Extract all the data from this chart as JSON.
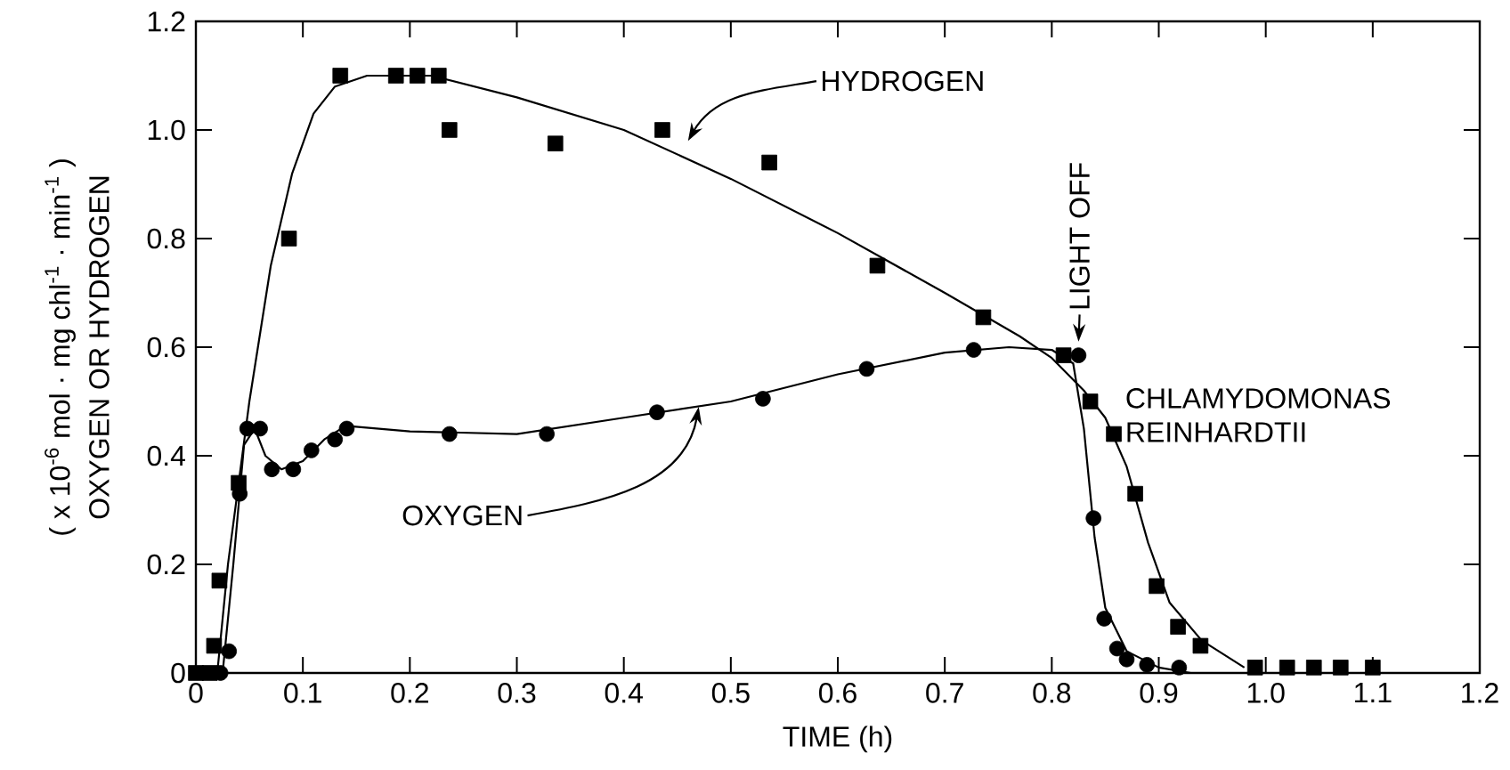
{
  "chart_data": {
    "type": "scatter",
    "xlabel": "TIME (h)",
    "ylabel": "OXYGEN OR HYDROGEN",
    "xlim": [
      0,
      1.2
    ],
    "ylim": [
      0,
      1.2
    ],
    "xticks": [
      0,
      0.1,
      0.2,
      0.3,
      0.4,
      0.5,
      0.6,
      0.7,
      0.8,
      0.9,
      {
        "value": 1.0,
        "label": "1.0"
      },
      1.1,
      1.2
    ],
    "yticks": [
      0,
      0.2,
      0.4,
      0.6,
      0.8,
      {
        "value": 1.0,
        "label": "1.0"
      },
      1.2
    ],
    "series": [
      {
        "marker": "square",
        "color": "#000000",
        "x": [
          0,
          0.013,
          0.017,
          0.022,
          0.04,
          0.087,
          0.135,
          0.187,
          0.207,
          0.227,
          0.237,
          0.336,
          0.436,
          0.536,
          0.637,
          0.736,
          0.811,
          0.836,
          0.858,
          0.878,
          0.898,
          0.918,
          0.939,
          0.99,
          1.02,
          1.045,
          1.07,
          1.1
        ],
        "values": [
          0,
          0,
          0.05,
          0.17,
          0.35,
          0.8,
          1.1,
          1.1,
          1.1,
          1.1,
          1.0,
          0.975,
          1.0,
          0.94,
          0.75,
          0.655,
          0.585,
          0.5,
          0.44,
          0.33,
          0.16,
          0.085,
          0.05,
          0.01,
          0.01,
          0.01,
          0.01,
          0.01
        ]
      },
      {
        "marker": "circle",
        "color": "#000000",
        "x": [
          0.023,
          0.031,
          0.041,
          0.048,
          0.06,
          0.071,
          0.091,
          0.108,
          0.13,
          0.141,
          0.237,
          0.328,
          0.431,
          0.53,
          0.627,
          0.727,
          0.825,
          0.839,
          0.849,
          0.861,
          0.87,
          0.889,
          0.919
        ],
        "values": [
          0,
          0.04,
          0.33,
          0.45,
          0.45,
          0.375,
          0.375,
          0.41,
          0.43,
          0.45,
          0.44,
          0.44,
          0.48,
          0.505,
          0.56,
          0.595,
          0.585,
          0.285,
          0.1,
          0.045,
          0.025,
          0.015,
          0.01
        ]
      },
      {
        "type": "line",
        "color": "#000000",
        "x": [
          0.02,
          0.03,
          0.05,
          0.07,
          0.09,
          0.11,
          0.13,
          0.16,
          0.22,
          0.3,
          0.4,
          0.5,
          0.6,
          0.7,
          0.77,
          0.8,
          0.83,
          0.85,
          0.87,
          0.89,
          0.91,
          0.94,
          0.98
        ],
        "values": [
          0,
          0.2,
          0.5,
          0.75,
          0.92,
          1.03,
          1.08,
          1.1,
          1.1,
          1.06,
          1.0,
          0.91,
          0.81,
          0.7,
          0.62,
          0.58,
          0.52,
          0.47,
          0.38,
          0.24,
          0.13,
          0.06,
          0.01
        ]
      },
      {
        "type": "line",
        "color": "#000000",
        "x": [
          0.025,
          0.035,
          0.045,
          0.055,
          0.065,
          0.08,
          0.1,
          0.12,
          0.14,
          0.2,
          0.3,
          0.4,
          0.5,
          0.6,
          0.7,
          0.76,
          0.8,
          0.82,
          0.83,
          0.84,
          0.85,
          0.87,
          0.9,
          0.93
        ],
        "values": [
          0,
          0.2,
          0.42,
          0.45,
          0.4,
          0.375,
          0.39,
          0.43,
          0.455,
          0.445,
          0.44,
          0.47,
          0.5,
          0.55,
          0.59,
          0.6,
          0.595,
          0.57,
          0.45,
          0.25,
          0.12,
          0.04,
          0.01,
          0
        ]
      }
    ],
    "annotations": [
      "HYDROGEN",
      "OXYGEN",
      "LIGHT OFF",
      "CHLAMYDOMONAS REINHARDTII",
      "( x 10$^{-6}$ mol · mg chl$^{-1}$ · min$^{-1}$ )"
    ]
  }
}
